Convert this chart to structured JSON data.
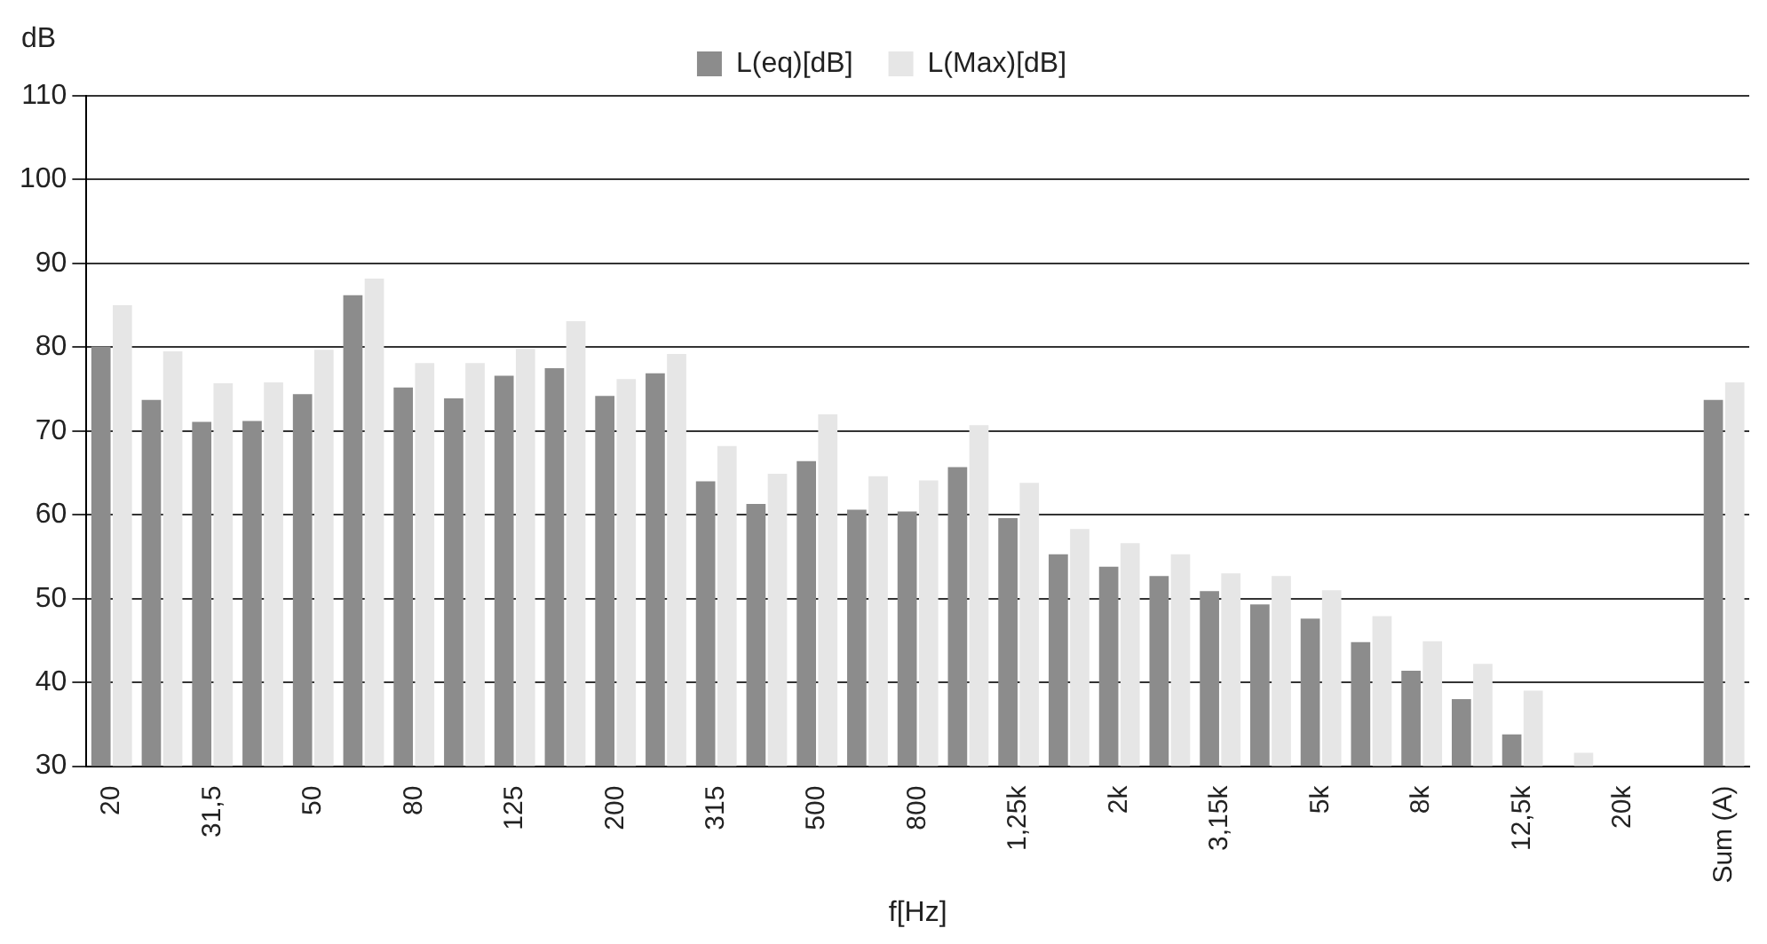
{
  "chart_data": {
    "type": "bar",
    "xlabel": "f[Hz]",
    "ylabel": "dB",
    "categories": [
      "20",
      null,
      "31,5",
      null,
      "50",
      null,
      "80",
      null,
      "125",
      null,
      "200",
      null,
      "315",
      null,
      "500",
      null,
      "800",
      null,
      "1,25k",
      null,
      "2k",
      null,
      "3,15k",
      null,
      "5k",
      null,
      "8k",
      null,
      "12,5k",
      null,
      "20k",
      null,
      "Sum (A)"
    ],
    "series": [
      {
        "name": "L(eq)[dB]",
        "color": "#8c8c8c",
        "values": [
          80.1,
          73.7,
          71.1,
          71.2,
          74.4,
          86.2,
          75.2,
          73.9,
          76.6,
          77.5,
          74.2,
          76.9,
          64.0,
          61.3,
          66.4,
          60.6,
          60.4,
          65.7,
          59.6,
          55.3,
          53.8,
          52.7,
          50.9,
          49.3,
          47.6,
          44.8,
          41.4,
          38.0,
          33.8,
          null,
          null,
          null,
          73.7
        ]
      },
      {
        "name": "L(Max)[dB]",
        "color": "#e6e6e6",
        "values": [
          85.0,
          79.5,
          75.7,
          75.8,
          79.7,
          88.2,
          78.1,
          78.1,
          79.8,
          83.1,
          76.2,
          79.2,
          68.2,
          64.9,
          72.0,
          64.6,
          64.1,
          70.7,
          63.8,
          58.3,
          56.6,
          55.3,
          53.0,
          52.7,
          51.0,
          47.9,
          44.9,
          42.2,
          39.0,
          31.6,
          null,
          null,
          75.8
        ]
      }
    ],
    "ylim": [
      30,
      110
    ],
    "yticks": [
      30,
      40,
      50,
      60,
      70,
      80,
      90,
      100,
      110
    ],
    "grid": "y",
    "legend": "top"
  }
}
